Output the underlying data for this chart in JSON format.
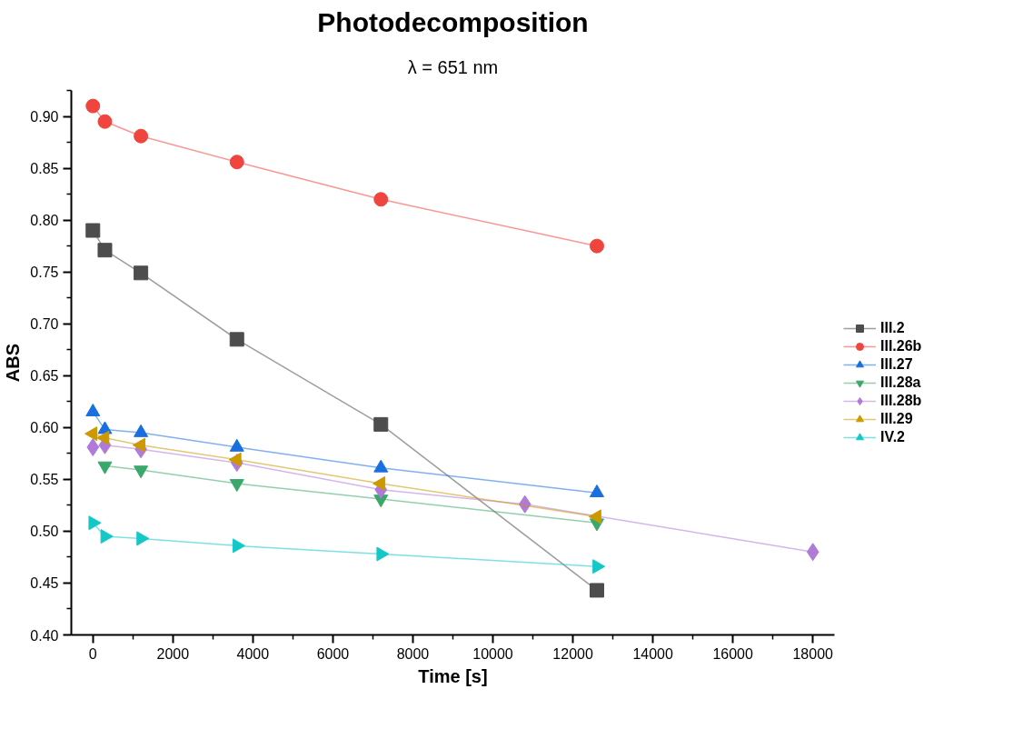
{
  "chart_data": {
    "type": "line",
    "title": "Photodecomposition",
    "subtitle": "λ = 651 nm",
    "xlabel": "Time [s]",
    "ylabel": "ABS",
    "xlim": [
      -540,
      18540
    ],
    "ylim": [
      0.4,
      0.925
    ],
    "xticks": [
      0,
      2000,
      4000,
      6000,
      8000,
      10000,
      12000,
      14000,
      16000,
      18000
    ],
    "yticks": [
      {
        "value": 0.4,
        "label": "0.40"
      },
      {
        "value": 0.45,
        "label": "0.45"
      },
      {
        "value": 0.5,
        "label": "0.50"
      },
      {
        "value": 0.55,
        "label": "0.55"
      },
      {
        "value": 0.6,
        "label": "0.60"
      },
      {
        "value": 0.65,
        "label": "0.65"
      },
      {
        "value": 0.7,
        "label": "0.70"
      },
      {
        "value": 0.75,
        "label": "0.75"
      },
      {
        "value": 0.8,
        "label": "0.80"
      },
      {
        "value": 0.85,
        "label": "0.85"
      },
      {
        "value": 0.9,
        "label": "0.90"
      }
    ],
    "grid": false,
    "legend": "right",
    "line_style": "solid",
    "series": [
      {
        "name": "III.2",
        "color": "#4d4d4d",
        "marker": "square",
        "x": [
          0,
          300,
          1200,
          3600,
          7200,
          12600
        ],
        "values": [
          0.79,
          0.771,
          0.749,
          0.685,
          0.603,
          0.443
        ]
      },
      {
        "name": "III.26b",
        "color": "#f0443f",
        "marker": "circle",
        "x": [
          0,
          300,
          1200,
          3600,
          7200,
          12600
        ],
        "values": [
          0.91,
          0.895,
          0.881,
          0.856,
          0.82,
          0.775
        ]
      },
      {
        "name": "III.27",
        "color": "#1a6fe0",
        "marker": "triangle",
        "x": [
          0,
          300,
          1200,
          3600,
          7200,
          12600
        ],
        "values": [
          0.615,
          0.598,
          0.595,
          0.581,
          0.561,
          0.537
        ]
      },
      {
        "name": "III.28a",
        "color": "#3aa86b",
        "marker": "triangle_down",
        "x": [
          300,
          1200,
          3600,
          7200,
          12600
        ],
        "values": [
          0.563,
          0.559,
          0.546,
          0.531,
          0.508
        ]
      },
      {
        "name": "III.28b",
        "color": "#b07ad9",
        "marker": "diamond",
        "x": [
          0,
          300,
          1200,
          3600,
          7200,
          10800,
          18000
        ],
        "values": [
          0.581,
          0.583,
          0.579,
          0.566,
          0.54,
          0.526,
          0.48
        ]
      },
      {
        "name": "III.29",
        "color": "#cc9900",
        "marker": "triangle_left",
        "x": [
          0,
          300,
          1200,
          3600,
          7200,
          12600
        ],
        "values": [
          0.594,
          0.59,
          0.583,
          0.569,
          0.546,
          0.514
        ]
      },
      {
        "name": "IV.2",
        "color": "#14c8c8",
        "marker": "triangle_right",
        "x": [
          0,
          300,
          1200,
          3600,
          7200,
          12600
        ],
        "values": [
          0.508,
          0.495,
          0.493,
          0.486,
          0.478,
          0.466
        ]
      }
    ]
  }
}
